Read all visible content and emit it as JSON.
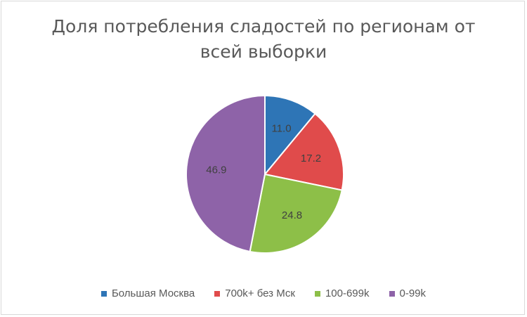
{
  "chart_data": {
    "type": "pie",
    "title_lines": [
      "Доля потребления сладостей по регионам от",
      "всей выборки"
    ],
    "categories": [
      "Большая Москва",
      "700k+ без Мск",
      "100-699k",
      "0-99k"
    ],
    "values": [
      11.0,
      17.2,
      24.8,
      46.9
    ],
    "labels": [
      "11.0",
      "17.2",
      "24.8",
      "46.9"
    ],
    "colors": [
      "#2E75B6",
      "#E04B4B",
      "#8DBF48",
      "#8E63A8"
    ],
    "start_angle_deg": 0,
    "direction": "clockwise",
    "legend_position": "bottom"
  }
}
